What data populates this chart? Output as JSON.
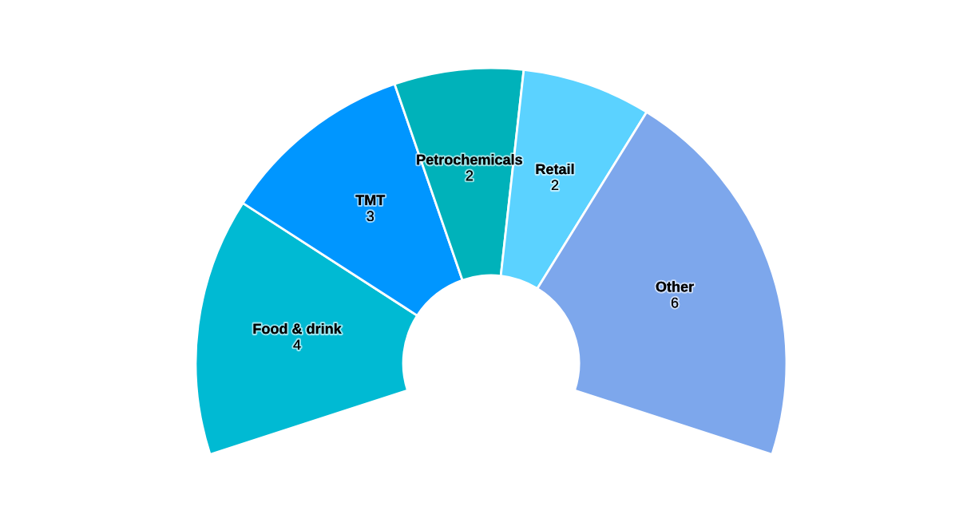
{
  "chart_data": {
    "type": "donut",
    "categories": [
      "Food & drink",
      "TMT",
      "Petrochemicals",
      "Retail",
      "Other"
    ],
    "values": [
      4,
      3,
      2,
      2,
      6
    ],
    "colors": [
      "#00bad3",
      "#0096ff",
      "#00b2ba",
      "#5bd2ff",
      "#7da7ec"
    ],
    "data_labels": true
  }
}
